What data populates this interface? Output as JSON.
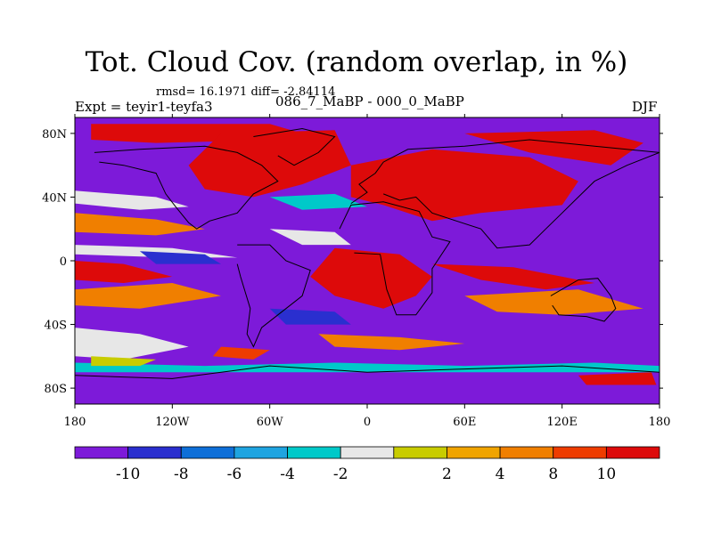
{
  "header": {
    "title": "Tot. Cloud Cov. (random overlap, in %)",
    "stats": "rmsd= 16.1971  diff= -2.84114",
    "experiment": "Expt = teyir1-teyfa3",
    "period": "086_7_MaBP - 000_0_MaBP",
    "season": "DJF"
  },
  "map": {
    "projection": "cylindrical equidistant",
    "lon_range": [
      -180,
      180
    ],
    "lat_range": [
      -90,
      90
    ],
    "xticks": [
      {
        "lon": -180,
        "label": "180"
      },
      {
        "lon": -120,
        "label": "120W"
      },
      {
        "lon": -60,
        "label": "60W"
      },
      {
        "lon": 0,
        "label": "0"
      },
      {
        "lon": 60,
        "label": "60E"
      },
      {
        "lon": 120,
        "label": "120E"
      },
      {
        "lon": 180,
        "label": "180"
      }
    ],
    "yticks": [
      {
        "lat": 80,
        "label": "80N"
      },
      {
        "lat": 40,
        "label": "40N"
      },
      {
        "lat": 0,
        "label": "0"
      },
      {
        "lat": -40,
        "label": "40S"
      },
      {
        "lat": -80,
        "label": "80S"
      }
    ],
    "background_color": "#7d1ad9",
    "field_regions": [
      {
        "name": "arctic-high",
        "color": "#dd0a0a",
        "points": [
          [
            -170,
            86
          ],
          [
            -60,
            86
          ],
          [
            -40,
            80
          ],
          [
            -90,
            75
          ],
          [
            -130,
            74
          ],
          [
            -170,
            76
          ]
        ]
      },
      {
        "name": "north-atlantic-high",
        "color": "#dd0a0a",
        "points": [
          [
            -90,
            80
          ],
          [
            -20,
            82
          ],
          [
            -10,
            60
          ],
          [
            -40,
            48
          ],
          [
            -70,
            40
          ],
          [
            -100,
            45
          ],
          [
            -110,
            60
          ]
        ]
      },
      {
        "name": "eurasia-high",
        "color": "#dd0a0a",
        "points": [
          [
            -10,
            60
          ],
          [
            40,
            70
          ],
          [
            100,
            65
          ],
          [
            130,
            50
          ],
          [
            120,
            35
          ],
          [
            70,
            30
          ],
          [
            40,
            25
          ],
          [
            10,
            35
          ],
          [
            -10,
            40
          ]
        ]
      },
      {
        "name": "siberia-high",
        "color": "#dd0a0a",
        "points": [
          [
            60,
            80
          ],
          [
            140,
            82
          ],
          [
            170,
            74
          ],
          [
            150,
            60
          ],
          [
            100,
            68
          ]
        ]
      },
      {
        "name": "south-america-high",
        "color": "#dd0a0a",
        "points": [
          [
            -20,
            8
          ],
          [
            20,
            4
          ],
          [
            40,
            -10
          ],
          [
            30,
            -22
          ],
          [
            10,
            -30
          ],
          [
            -20,
            -22
          ],
          [
            -35,
            -10
          ]
        ]
      },
      {
        "name": "south-pacific-high",
        "color": "#dd0a0a",
        "points": [
          [
            -180,
            0
          ],
          [
            -150,
            -2
          ],
          [
            -120,
            -10
          ],
          [
            -150,
            -14
          ],
          [
            -180,
            -12
          ]
        ]
      },
      {
        "name": "indian-ocean-high",
        "color": "#dd0a0a",
        "points": [
          [
            40,
            -2
          ],
          [
            90,
            -4
          ],
          [
            140,
            -14
          ],
          [
            110,
            -18
          ],
          [
            70,
            -12
          ]
        ]
      },
      {
        "name": "southern-ocean-high",
        "color": "#ee3c00",
        "points": [
          [
            -90,
            -54
          ],
          [
            -60,
            -56
          ],
          [
            -70,
            -62
          ],
          [
            -95,
            -60
          ]
        ]
      },
      {
        "name": "antarctic-high",
        "color": "#dd0a0a",
        "points": [
          [
            130,
            -72
          ],
          [
            175,
            -70
          ],
          [
            178,
            -78
          ],
          [
            135,
            -78
          ]
        ]
      },
      {
        "name": "pacific-band-8",
        "color": "#f07f00",
        "points": [
          [
            -180,
            30
          ],
          [
            -130,
            26
          ],
          [
            -100,
            20
          ],
          [
            -130,
            16
          ],
          [
            -180,
            18
          ]
        ]
      },
      {
        "name": "south-pacific-8",
        "color": "#f07f00",
        "points": [
          [
            -180,
            -18
          ],
          [
            -120,
            -14
          ],
          [
            -90,
            -22
          ],
          [
            -140,
            -30
          ],
          [
            -180,
            -28
          ]
        ]
      },
      {
        "name": "indian-8",
        "color": "#f07f00",
        "points": [
          [
            60,
            -22
          ],
          [
            130,
            -18
          ],
          [
            170,
            -30
          ],
          [
            120,
            -34
          ],
          [
            80,
            -32
          ]
        ]
      },
      {
        "name": "atlantic-south-8",
        "color": "#f07f00",
        "points": [
          [
            -30,
            -46
          ],
          [
            20,
            -48
          ],
          [
            60,
            -52
          ],
          [
            20,
            -56
          ],
          [
            -20,
            -54
          ]
        ]
      },
      {
        "name": "north-pacific-white",
        "color": "#e7e7e7",
        "points": [
          [
            -180,
            44
          ],
          [
            -130,
            40
          ],
          [
            -110,
            34
          ],
          [
            -140,
            32
          ],
          [
            -180,
            36
          ]
        ]
      },
      {
        "name": "south-pacific-white",
        "color": "#e7e7e7",
        "points": [
          [
            -180,
            -42
          ],
          [
            -140,
            -46
          ],
          [
            -110,
            -54
          ],
          [
            -150,
            -62
          ],
          [
            -180,
            -60
          ]
        ]
      },
      {
        "name": "equatorial-white",
        "color": "#e7e7e7",
        "points": [
          [
            -180,
            10
          ],
          [
            -120,
            8
          ],
          [
            -80,
            2
          ],
          [
            -120,
            2
          ],
          [
            -180,
            4
          ]
        ]
      },
      {
        "name": "atlantic-white",
        "color": "#e7e7e7",
        "points": [
          [
            -60,
            20
          ],
          [
            -20,
            18
          ],
          [
            -10,
            10
          ],
          [
            -40,
            10
          ]
        ]
      },
      {
        "name": "southern-cyan",
        "color": "#00c9c9",
        "points": [
          [
            -180,
            -64
          ],
          [
            -100,
            -66
          ],
          [
            -20,
            -64
          ],
          [
            60,
            -66
          ],
          [
            140,
            -64
          ],
          [
            180,
            -66
          ],
          [
            180,
            -70
          ],
          [
            -180,
            -70
          ]
        ]
      },
      {
        "name": "north-atlantic-cyan",
        "color": "#00c9c9",
        "points": [
          [
            -60,
            40
          ],
          [
            -20,
            42
          ],
          [
            0,
            34
          ],
          [
            -40,
            32
          ]
        ]
      },
      {
        "name": "south-pacific-yellow",
        "color": "#c8cc00",
        "points": [
          [
            -170,
            -60
          ],
          [
            -130,
            -62
          ],
          [
            -140,
            -66
          ],
          [
            -170,
            -66
          ]
        ]
      },
      {
        "name": "south-atlantic-blue",
        "color": "#2a2fcf",
        "points": [
          [
            -60,
            -30
          ],
          [
            -20,
            -32
          ],
          [
            -10,
            -40
          ],
          [
            -50,
            -40
          ]
        ]
      },
      {
        "name": "pacific-blue",
        "color": "#2a2fcf",
        "points": [
          [
            -140,
            6
          ],
          [
            -100,
            4
          ],
          [
            -90,
            -2
          ],
          [
            -130,
            -2
          ]
        ]
      }
    ],
    "coastlines": [
      {
        "name": "north-america-outline",
        "points": [
          [
            -168,
            68
          ],
          [
            -140,
            70
          ],
          [
            -100,
            72
          ],
          [
            -80,
            68
          ],
          [
            -65,
            60
          ],
          [
            -55,
            50
          ],
          [
            -70,
            42
          ],
          [
            -80,
            30
          ],
          [
            -97,
            25
          ],
          [
            -105,
            20
          ],
          [
            -110,
            24
          ],
          [
            -118,
            34
          ],
          [
            -124,
            42
          ],
          [
            -130,
            55
          ],
          [
            -150,
            60
          ],
          [
            -165,
            62
          ]
        ]
      },
      {
        "name": "greenland-outline",
        "points": [
          [
            -70,
            78
          ],
          [
            -40,
            83
          ],
          [
            -20,
            78
          ],
          [
            -30,
            68
          ],
          [
            -45,
            60
          ],
          [
            -55,
            66
          ]
        ]
      },
      {
        "name": "south-america-outline",
        "points": [
          [
            -80,
            10
          ],
          [
            -60,
            10
          ],
          [
            -50,
            0
          ],
          [
            -35,
            -6
          ],
          [
            -40,
            -22
          ],
          [
            -55,
            -34
          ],
          [
            -65,
            -42
          ],
          [
            -70,
            -54
          ],
          [
            -74,
            -46
          ],
          [
            -72,
            -30
          ],
          [
            -78,
            -10
          ],
          [
            -80,
            -2
          ]
        ]
      },
      {
        "name": "africa-outline",
        "points": [
          [
            -17,
            20
          ],
          [
            -10,
            35
          ],
          [
            10,
            37
          ],
          [
            32,
            31
          ],
          [
            40,
            15
          ],
          [
            51,
            12
          ],
          [
            40,
            -5
          ],
          [
            40,
            -20
          ],
          [
            30,
            -34
          ],
          [
            18,
            -34
          ],
          [
            12,
            -18
          ],
          [
            8,
            4
          ],
          [
            -8,
            5
          ]
        ]
      },
      {
        "name": "eurasia-outline",
        "points": [
          [
            -10,
            36
          ],
          [
            0,
            43
          ],
          [
            -5,
            48
          ],
          [
            5,
            55
          ],
          [
            10,
            62
          ],
          [
            25,
            70
          ],
          [
            60,
            72
          ],
          [
            100,
            76
          ],
          [
            140,
            72
          ],
          [
            180,
            68
          ],
          [
            160,
            60
          ],
          [
            140,
            50
          ],
          [
            130,
            40
          ],
          [
            120,
            30
          ],
          [
            110,
            20
          ],
          [
            100,
            10
          ],
          [
            80,
            8
          ],
          [
            70,
            20
          ],
          [
            55,
            25
          ],
          [
            40,
            30
          ],
          [
            30,
            40
          ],
          [
            20,
            38
          ],
          [
            10,
            42
          ]
        ]
      },
      {
        "name": "australia-outline",
        "points": [
          [
            113,
            -22
          ],
          [
            130,
            -12
          ],
          [
            142,
            -11
          ],
          [
            150,
            -22
          ],
          [
            153,
            -30
          ],
          [
            146,
            -38
          ],
          [
            135,
            -35
          ],
          [
            118,
            -34
          ],
          [
            114,
            -28
          ]
        ]
      },
      {
        "name": "antarctica-outline",
        "points": [
          [
            -180,
            -72
          ],
          [
            -120,
            -74
          ],
          [
            -60,
            -66
          ],
          [
            0,
            -70
          ],
          [
            60,
            -68
          ],
          [
            120,
            -66
          ],
          [
            180,
            -70
          ]
        ]
      }
    ]
  },
  "colorbar": {
    "colors": [
      "#7d1ad9",
      "#2a2fcf",
      "#0e6fd8",
      "#1fa4e0",
      "#00c9c9",
      "#e7e7e7",
      "#c8cc00",
      "#f0a400",
      "#f07f00",
      "#ee3c00",
      "#dd0a0a"
    ],
    "labels": [
      "-10",
      "-8",
      "-6",
      "-4",
      "-2",
      "2",
      "4",
      "8",
      "10"
    ]
  }
}
